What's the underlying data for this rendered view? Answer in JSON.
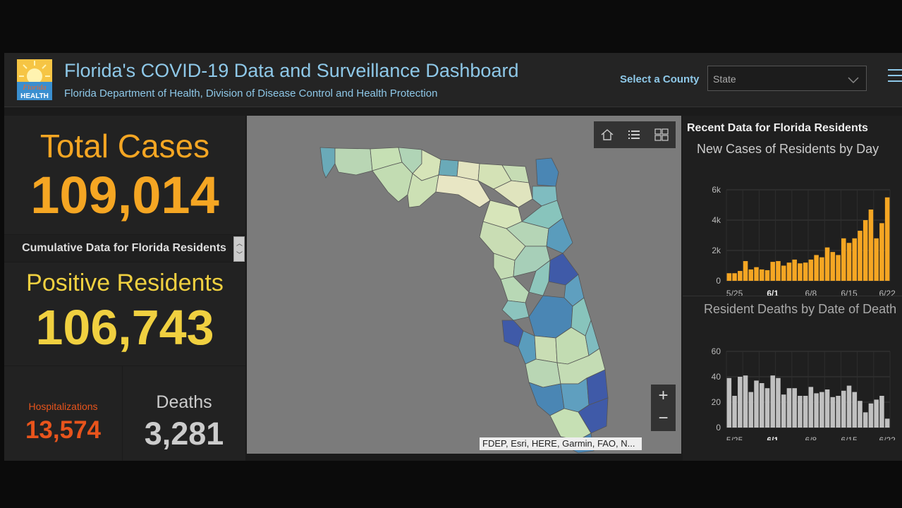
{
  "header": {
    "logo_text_1": "Florida",
    "logo_text_2": "HEALTH",
    "title": "Florida's COVID-19 Data and Surveillance Dashboard",
    "subtitle": "Florida Department of Health, Division of Disease Control and Health Protection",
    "county_label": "Select a County",
    "county_value": "State"
  },
  "colors": {
    "cases": "#f5a623",
    "positive": "#f0d040",
    "hospitalizations": "#e8541c",
    "deaths": "#cccccc",
    "title_blue": "#8ec8e8"
  },
  "stats": {
    "total_cases_label": "Total Cases",
    "total_cases_value": "109,014",
    "cumulative_label": "Cumulative Data for Florida Residents",
    "positive_label": "Positive Residents",
    "positive_value": "106,743",
    "hospitalizations_label": "Hospitalizations",
    "hospitalizations_value": "13,574",
    "deaths_label": "Deaths",
    "deaths_value": "3,281"
  },
  "map": {
    "toolbar_icons": [
      "home-icon",
      "legend-list-icon",
      "basemap-gallery-icon"
    ],
    "zoom_in": "+",
    "zoom_out": "−",
    "attribution": "FDEP, Esri, HERE, Garmin, FAO, N..."
  },
  "right_panel": {
    "title": "Recent Data for Florida Residents",
    "chart1_title": "New Cases of Residents by Day",
    "chart2_title": "Resident Deaths by Date of Death"
  },
  "chart_data": [
    {
      "type": "bar",
      "title": "New Cases of Residents by Day",
      "ytick_labels": [
        "0",
        "2k",
        "4k",
        "6k"
      ],
      "xtick_labels": [
        "5/25",
        "6/1",
        "6/8",
        "6/15",
        "6/22"
      ],
      "ylim": [
        0,
        6000
      ],
      "color": "#f5a623",
      "values": [
        500,
        500,
        650,
        1300,
        750,
        900,
        750,
        700,
        1250,
        1300,
        1000,
        1200,
        1400,
        1150,
        1200,
        1400,
        1700,
        1550,
        2200,
        1900,
        1700,
        2800,
        2500,
        2800,
        3300,
        4000,
        4700,
        2800,
        3800,
        5500
      ]
    },
    {
      "type": "bar",
      "title": "Resident Deaths by Date of Death",
      "ytick_labels": [
        "0",
        "20",
        "40",
        "60"
      ],
      "xtick_labels": [
        "5/25",
        "6/1",
        "6/8",
        "6/15",
        "6/22"
      ],
      "ylim": [
        0,
        60
      ],
      "color": "#c0c0c0",
      "values": [
        39,
        25,
        40,
        41,
        28,
        37,
        35,
        31,
        41,
        39,
        26,
        31,
        31,
        25,
        25,
        32,
        27,
        28,
        30,
        24,
        25,
        29,
        33,
        28,
        21,
        12,
        19,
        22,
        25,
        7
      ]
    }
  ]
}
